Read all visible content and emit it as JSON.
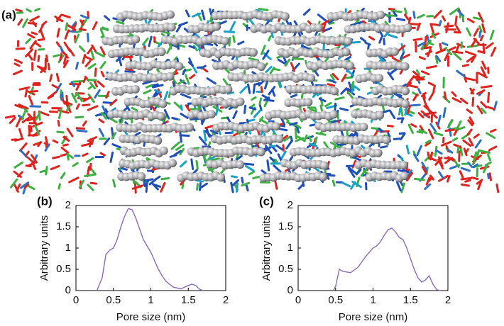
{
  "panel_a": {
    "label": "(a)"
  },
  "chart_data": [
    {
      "type": "line",
      "label": "(b)",
      "xlabel": "Pore size (nm)",
      "ylabel": "Arbitrary units",
      "xlim": [
        0,
        2
      ],
      "xticks": [
        0,
        0.5,
        1,
        1.5,
        2
      ],
      "ylim": [
        0,
        2
      ],
      "yticks": [
        0,
        0.5,
        1,
        1.5,
        2
      ],
      "x": [
        0.28,
        0.35,
        0.4,
        0.45,
        0.5,
        0.55,
        0.6,
        0.65,
        0.7,
        0.75,
        0.8,
        0.85,
        0.9,
        0.95,
        1.0,
        1.05,
        1.1,
        1.15,
        1.2,
        1.3,
        1.4,
        1.5,
        1.55,
        1.6,
        1.65,
        1.7
      ],
      "series": [
        {
          "color": "#8a6bbf",
          "values": [
            0,
            0.3,
            0.85,
            0.95,
            1.0,
            1.2,
            1.5,
            1.75,
            1.93,
            1.9,
            1.7,
            1.45,
            1.2,
            1.05,
            0.9,
            0.7,
            0.5,
            0.35,
            0.22,
            0.08,
            0.04,
            0.12,
            0.15,
            0.12,
            0.03,
            0
          ]
        }
      ]
    },
    {
      "type": "line",
      "label": "(c)",
      "xlabel": "Pore size (nm)",
      "ylabel": "Arbitrary units",
      "xlim": [
        0,
        2
      ],
      "xticks": [
        0,
        0.5,
        1,
        1.5,
        2
      ],
      "ylim": [
        0,
        2
      ],
      "yticks": [
        0,
        0.5,
        1,
        1.5,
        2
      ],
      "x": [
        0.47,
        0.5,
        0.55,
        0.6,
        0.7,
        0.8,
        0.9,
        1.0,
        1.05,
        1.1,
        1.15,
        1.2,
        1.25,
        1.3,
        1.35,
        1.4,
        1.45,
        1.5,
        1.55,
        1.6,
        1.65,
        1.7,
        1.75,
        1.8,
        1.85,
        1.9
      ],
      "series": [
        {
          "color": "#8a6bbf",
          "values": [
            0,
            0.1,
            0.5,
            0.45,
            0.42,
            0.55,
            0.8,
            1.0,
            1.05,
            1.15,
            1.3,
            1.43,
            1.47,
            1.38,
            1.25,
            1.2,
            1.0,
            0.75,
            0.5,
            0.3,
            0.2,
            0.25,
            0.35,
            0.15,
            0.02,
            0
          ]
        }
      ]
    }
  ]
}
